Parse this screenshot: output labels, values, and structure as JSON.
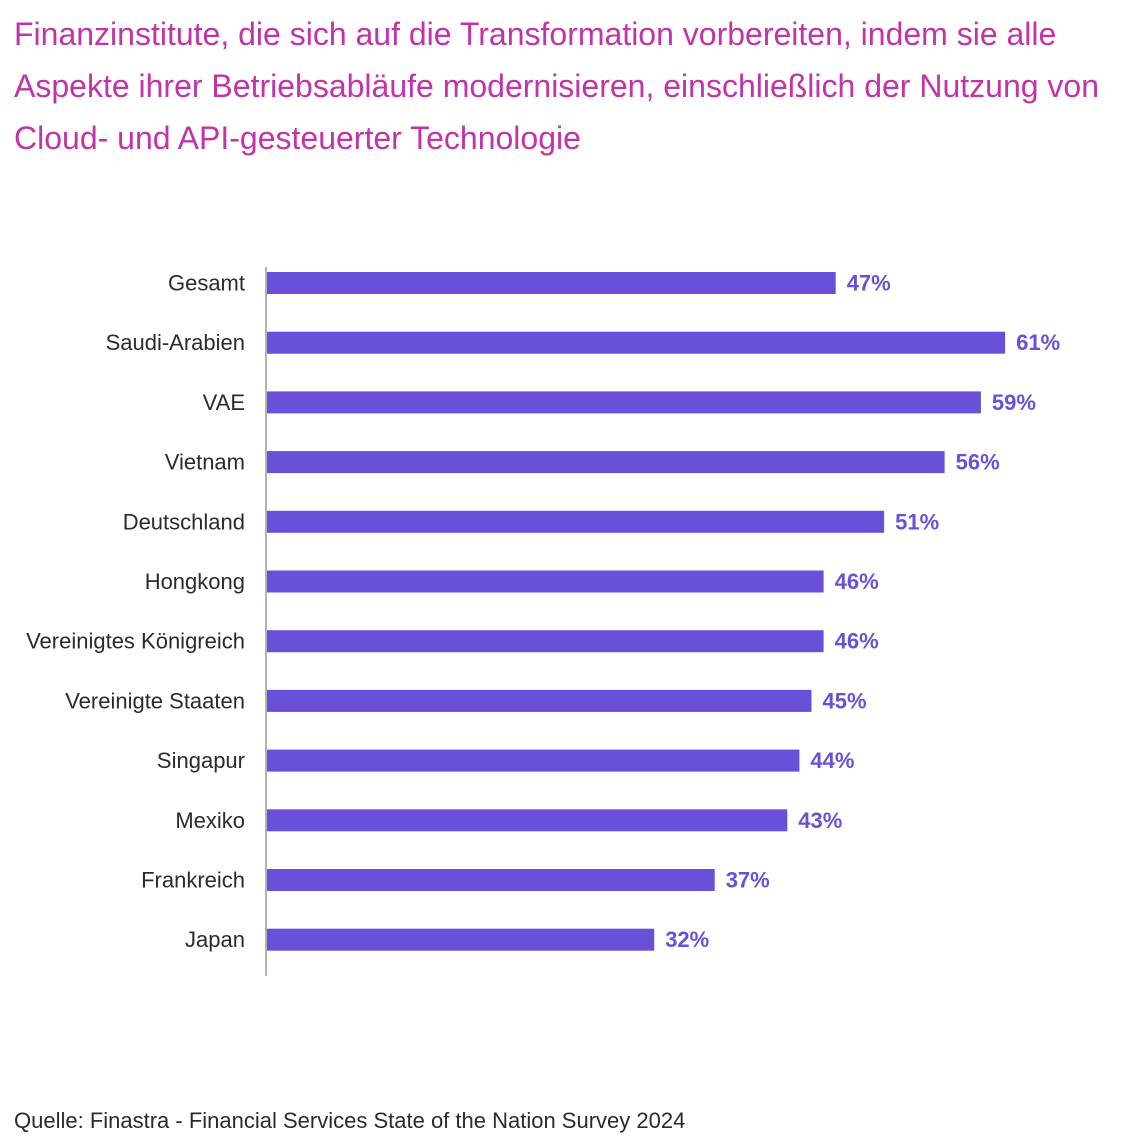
{
  "title": "Finanzinstitute, die sich auf die Transformation vorbereiten, indem sie alle Aspekte ihrer Betriebsabläufe modernisieren, einschließlich der Nutzung von Cloud- und API-gesteuerter Technologie",
  "source": "Quelle: Finastra - Financial Services State of the Nation Survey 2024",
  "colors": {
    "title": "#c233a8",
    "bar": "#6a4fd9",
    "value_label": "#6a4fd9",
    "axis": "#9a9a9a"
  },
  "chart_data": {
    "type": "bar",
    "orientation": "horizontal",
    "categories": [
      "Gesamt",
      "Saudi-Arabien",
      "VAE",
      "Vietnam",
      "Deutschland",
      "Hongkong",
      "Vereinigtes Königreich",
      "Vereinigte Staaten",
      "Singapur",
      "Mexiko",
      "Frankreich",
      "Japan"
    ],
    "values": [
      47,
      61,
      59,
      56,
      51,
      46,
      46,
      45,
      44,
      43,
      37,
      32
    ],
    "value_labels": [
      "47%",
      "61%",
      "59%",
      "56%",
      "51%",
      "46%",
      "46%",
      "45%",
      "44%",
      "43%",
      "37%",
      "32%"
    ],
    "xlim": [
      0,
      100
    ],
    "grid": false,
    "legend": "none"
  }
}
